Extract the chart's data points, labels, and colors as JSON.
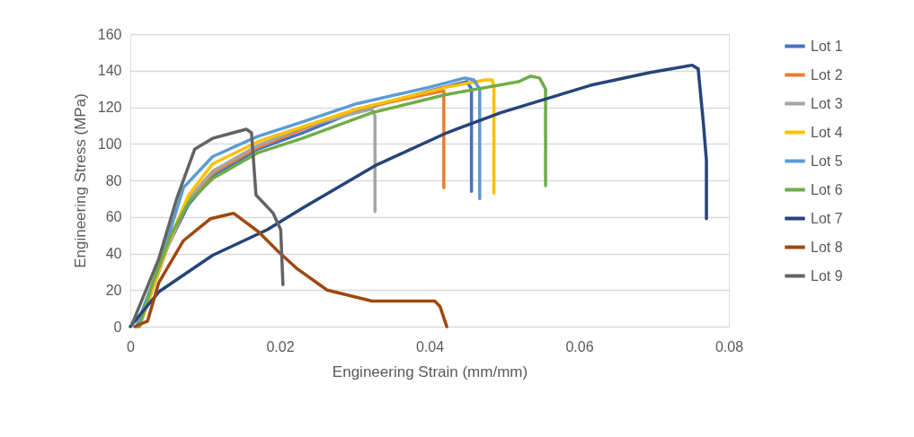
{
  "chart_data": {
    "type": "line",
    "xlabel": "Engineering Strain (mm/mm)",
    "ylabel": "Engineering Stress (MPa)",
    "xlim": [
      0,
      0.08
    ],
    "xticks": [
      0,
      0.02,
      0.04,
      0.06,
      0.08
    ],
    "ylim": [
      0,
      160
    ],
    "yticks": [
      0,
      20,
      40,
      60,
      80,
      100,
      120,
      140,
      160
    ],
    "grid": "y",
    "legend": "right",
    "series": [
      {
        "name": "Lot 1",
        "color": "#4472c4",
        "x": [
          0.001,
          0.005,
          0.0078,
          0.011,
          0.017,
          0.023,
          0.0303,
          0.04,
          0.045,
          0.0456,
          0.0456
        ],
        "values": [
          0,
          44,
          67,
          82,
          97,
          106,
          118,
          129,
          134,
          130,
          74
        ]
      },
      {
        "name": "Lot 2",
        "color": "#ed7d31",
        "x": [
          0.0012,
          0.005,
          0.0078,
          0.011,
          0.017,
          0.023,
          0.0303,
          0.0395,
          0.0419,
          0.0419
        ],
        "values": [
          0,
          44,
          69,
          84,
          98,
          108,
          119,
          127,
          129,
          76
        ]
      },
      {
        "name": "Lot 3",
        "color": "#a5a5a5",
        "x": [
          0.001,
          0.005,
          0.0078,
          0.011,
          0.017,
          0.023,
          0.0303,
          0.0323,
          0.0327,
          0.0327
        ],
        "values": [
          0,
          44,
          70,
          85,
          99,
          109,
          117,
          119,
          115,
          63
        ]
      },
      {
        "name": "Lot 4",
        "color": "#ffc000",
        "x": [
          0.0012,
          0.005,
          0.0078,
          0.011,
          0.017,
          0.0183,
          0.0303,
          0.0423,
          0.0475,
          0.0484,
          0.0486,
          0.0486
        ],
        "values": [
          0,
          45,
          72,
          89,
          101,
          103,
          119,
          131,
          135,
          135,
          130,
          73
        ]
      },
      {
        "name": "Lot 5",
        "color": "#5b9bd5",
        "x": [
          0.0008,
          0.004,
          0.0071,
          0.011,
          0.017,
          0.023,
          0.0303,
          0.04,
          0.0447,
          0.0459,
          0.0467,
          0.0467
        ],
        "values": [
          0,
          35,
          76,
          93,
          104,
          112,
          122,
          131,
          136,
          135,
          130,
          70
        ]
      },
      {
        "name": "Lot 6",
        "color": "#70ad47",
        "x": [
          0.0012,
          0.003,
          0.0054,
          0.0078,
          0.011,
          0.017,
          0.023,
          0.0323,
          0.0423,
          0.0519,
          0.0535,
          0.0547,
          0.0555,
          0.0555
        ],
        "values": [
          0,
          24,
          50,
          68,
          81,
          95,
          103,
          117,
          127,
          134,
          137,
          136,
          130,
          77
        ]
      },
      {
        "name": "Lot 7",
        "color": "#264478",
        "x": [
          0,
          0.0038,
          0.011,
          0.0183,
          0.0231,
          0.0327,
          0.0423,
          0.0495,
          0.0615,
          0.0695,
          0.0751,
          0.0759,
          0.0766,
          0.077,
          0.077
        ],
        "values": [
          0,
          19,
          39,
          53,
          65,
          88,
          106,
          117,
          132,
          139,
          143,
          141,
          111,
          91,
          59
        ]
      },
      {
        "name": "Lot 8",
        "color": "#9e480e",
        "x": [
          0.0006,
          0.0023,
          0.0038,
          0.0071,
          0.0107,
          0.0138,
          0.0171,
          0.0198,
          0.0222,
          0.0263,
          0.0323,
          0.0407,
          0.0414,
          0.0423
        ],
        "values": [
          0,
          3,
          24,
          47,
          59,
          62,
          52,
          41,
          32,
          20,
          14,
          14,
          11,
          0
        ]
      },
      {
        "name": "Lot 9",
        "color": "#636363",
        "x": [
          0.0002,
          0.0038,
          0.0062,
          0.0086,
          0.011,
          0.0155,
          0.0162,
          0.0168,
          0.0191,
          0.0201,
          0.0204
        ],
        "values": [
          1,
          37,
          70,
          97,
          103,
          108,
          106,
          72,
          62,
          53,
          23
        ]
      }
    ]
  }
}
